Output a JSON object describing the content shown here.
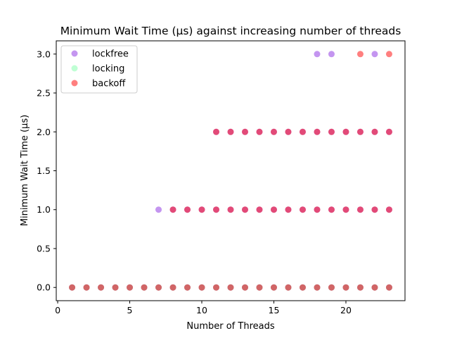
{
  "chart_data": {
    "type": "scatter",
    "title": "Minimum Wait Time (µs) against increasing number of threads",
    "xlabel": "Number of Threads",
    "ylabel": "Minimum Wait Time (µs)",
    "xlim": [
      -0.1,
      24.1
    ],
    "ylim": [
      -0.17,
      3.17
    ],
    "xticks": [
      0,
      5,
      10,
      15,
      20
    ],
    "xtick_labels": [
      "0",
      "5",
      "10",
      "15",
      "20"
    ],
    "yticks": [
      0.0,
      0.5,
      1.0,
      1.5,
      2.0,
      2.5,
      3.0
    ],
    "ytick_labels": [
      "0.0",
      "0.5",
      "1.0",
      "1.5",
      "2.0",
      "2.5",
      "3.0"
    ],
    "grid": false,
    "legend_position": "top-left",
    "series": [
      {
        "name": "lockfree",
        "color": "#8a2be2",
        "points": [
          [
            1,
            0
          ],
          [
            2,
            0
          ],
          [
            3,
            0
          ],
          [
            4,
            0
          ],
          [
            5,
            0
          ],
          [
            6,
            0
          ],
          [
            7,
            0
          ],
          [
            8,
            0
          ],
          [
            9,
            0
          ],
          [
            10,
            0
          ],
          [
            11,
            0
          ],
          [
            12,
            0
          ],
          [
            13,
            0
          ],
          [
            14,
            0
          ],
          [
            15,
            0
          ],
          [
            16,
            0
          ],
          [
            17,
            0
          ],
          [
            18,
            0
          ],
          [
            19,
            0
          ],
          [
            20,
            0
          ],
          [
            21,
            0
          ],
          [
            22,
            0
          ],
          [
            23,
            0
          ],
          [
            7,
            1
          ],
          [
            8,
            1
          ],
          [
            9,
            1
          ],
          [
            10,
            1
          ],
          [
            11,
            1
          ],
          [
            12,
            1
          ],
          [
            13,
            1
          ],
          [
            14,
            1
          ],
          [
            15,
            1
          ],
          [
            16,
            1
          ],
          [
            17,
            1
          ],
          [
            18,
            1
          ],
          [
            19,
            1
          ],
          [
            20,
            1
          ],
          [
            21,
            1
          ],
          [
            22,
            1
          ],
          [
            23,
            1
          ],
          [
            11,
            2
          ],
          [
            12,
            2
          ],
          [
            13,
            2
          ],
          [
            14,
            2
          ],
          [
            15,
            2
          ],
          [
            16,
            2
          ],
          [
            17,
            2
          ],
          [
            18,
            2
          ],
          [
            19,
            2
          ],
          [
            20,
            2
          ],
          [
            21,
            2
          ],
          [
            22,
            2
          ],
          [
            23,
            2
          ],
          [
            18,
            3
          ],
          [
            19,
            3
          ],
          [
            22,
            3
          ]
        ]
      },
      {
        "name": "locking",
        "color": "#7fffaa",
        "points": [
          [
            1,
            0
          ],
          [
            2,
            0
          ],
          [
            3,
            0
          ],
          [
            4,
            0
          ],
          [
            5,
            0
          ],
          [
            6,
            0
          ],
          [
            7,
            0
          ],
          [
            8,
            0
          ],
          [
            9,
            0
          ],
          [
            10,
            0
          ],
          [
            11,
            0
          ],
          [
            12,
            0
          ],
          [
            13,
            0
          ],
          [
            14,
            0
          ],
          [
            15,
            0
          ],
          [
            16,
            0
          ],
          [
            17,
            0
          ],
          [
            18,
            0
          ],
          [
            19,
            0
          ],
          [
            20,
            0
          ],
          [
            21,
            0
          ],
          [
            22,
            0
          ],
          [
            23,
            0
          ]
        ]
      },
      {
        "name": "backoff",
        "color": "#ff0000",
        "points": [
          [
            1,
            0
          ],
          [
            2,
            0
          ],
          [
            3,
            0
          ],
          [
            4,
            0
          ],
          [
            5,
            0
          ],
          [
            6,
            0
          ],
          [
            7,
            0
          ],
          [
            8,
            0
          ],
          [
            9,
            0
          ],
          [
            10,
            0
          ],
          [
            11,
            0
          ],
          [
            12,
            0
          ],
          [
            13,
            0
          ],
          [
            14,
            0
          ],
          [
            15,
            0
          ],
          [
            16,
            0
          ],
          [
            17,
            0
          ],
          [
            18,
            0
          ],
          [
            19,
            0
          ],
          [
            20,
            0
          ],
          [
            21,
            0
          ],
          [
            22,
            0
          ],
          [
            23,
            0
          ],
          [
            8,
            1
          ],
          [
            9,
            1
          ],
          [
            10,
            1
          ],
          [
            11,
            1
          ],
          [
            12,
            1
          ],
          [
            13,
            1
          ],
          [
            14,
            1
          ],
          [
            15,
            1
          ],
          [
            16,
            1
          ],
          [
            17,
            1
          ],
          [
            18,
            1
          ],
          [
            19,
            1
          ],
          [
            20,
            1
          ],
          [
            21,
            1
          ],
          [
            22,
            1
          ],
          [
            23,
            1
          ],
          [
            11,
            2
          ],
          [
            12,
            2
          ],
          [
            13,
            2
          ],
          [
            14,
            2
          ],
          [
            15,
            2
          ],
          [
            16,
            2
          ],
          [
            17,
            2
          ],
          [
            18,
            2
          ],
          [
            19,
            2
          ],
          [
            20,
            2
          ],
          [
            21,
            2
          ],
          [
            22,
            2
          ],
          [
            23,
            2
          ],
          [
            21,
            3
          ],
          [
            23,
            3
          ]
        ]
      }
    ]
  }
}
